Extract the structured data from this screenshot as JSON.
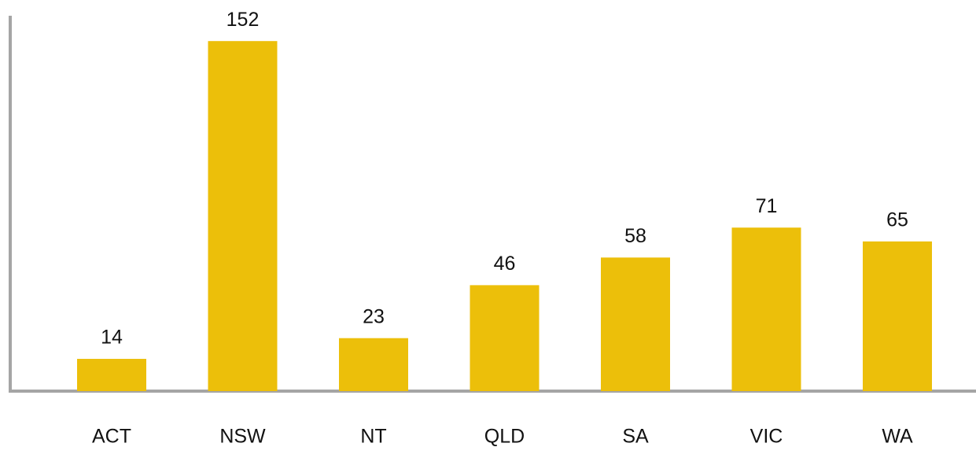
{
  "chart_data": {
    "type": "bar",
    "categories": [
      "ACT",
      "NSW",
      "NT",
      "QLD",
      "SA",
      "VIC",
      "WA"
    ],
    "values": [
      14,
      152,
      23,
      46,
      58,
      71,
      65
    ],
    "color": "#ecbf0a",
    "ylim": [
      0,
      163
    ]
  }
}
